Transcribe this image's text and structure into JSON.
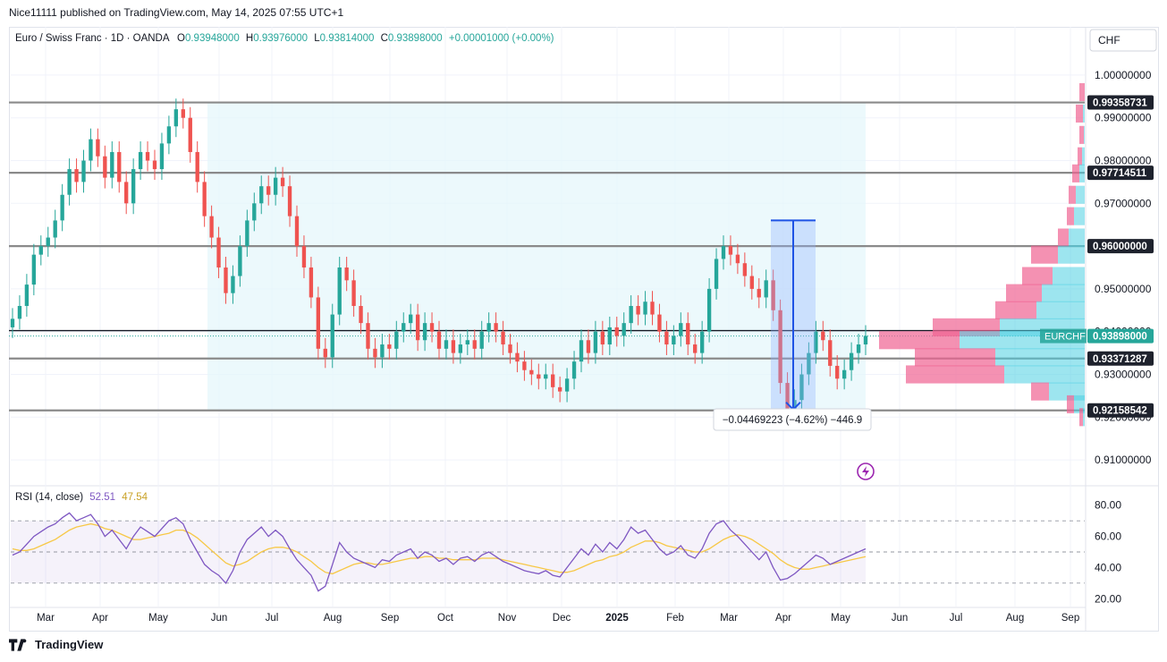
{
  "header": {
    "publisher": "Nice11111 published on TradingView.com, May 14, 2025 07:55 UTC+1"
  },
  "legend": {
    "symbol": "Euro / Swiss Franc · 1D · OANDA",
    "o_label": "O",
    "o": "0.93948000",
    "h_label": "H",
    "h": "0.93976000",
    "l_label": "L",
    "l": "0.93814000",
    "c_label": "C",
    "c": "0.93898000",
    "change": "+0.00001000 (+0.00%)"
  },
  "currency": "CHF",
  "rsi_legend": {
    "label": "RSI (14, close)",
    "rsi": "52.51",
    "ma": "47.54"
  },
  "measure_label": "−0.04469223 (−4.62%) −446.9",
  "footer": {
    "brand": "TradingView"
  },
  "colors": {
    "up": "#26a69a",
    "down": "#ef5350",
    "rsi": "#7e57c2",
    "rsi_ma": "#f7c846",
    "level": "#8a8a8a",
    "zone": "#e6f7fb",
    "measure": "#1e53e5",
    "vp_up": "#4dd0e1",
    "vp_down": "#f06292"
  },
  "icons": {
    "flash": "flash-icon",
    "logo": "tradingview-logo-icon"
  },
  "chart_data": {
    "type": "candlestick",
    "symbol": "EURCHF",
    "timeframe": "1D",
    "ylim": [
      0.905,
      1.005
    ],
    "y_ticks": [
      "0.91000000",
      "0.92000000",
      "0.93000000",
      "0.94000000",
      "0.95000000",
      "0.96000000",
      "0.97000000",
      "0.98000000",
      "0.99000000",
      "1.00000000"
    ],
    "x_ticks": [
      "Mar",
      "Apr",
      "May",
      "Jun",
      "Jul",
      "Aug",
      "Sep",
      "Oct",
      "Nov",
      "Dec",
      "2025",
      "Feb",
      "Mar",
      "Apr",
      "May",
      "Jun",
      "Jul",
      "Aug",
      "Sep"
    ],
    "price_points": [
      0.943,
      0.946,
      0.951,
      0.958,
      0.96,
      0.962,
      0.966,
      0.972,
      0.978,
      0.975,
      0.98,
      0.985,
      0.981,
      0.976,
      0.982,
      0.975,
      0.97,
      0.978,
      0.982,
      0.98,
      0.978,
      0.984,
      0.988,
      0.992,
      0.99,
      0.982,
      0.975,
      0.967,
      0.962,
      0.955,
      0.949,
      0.953,
      0.96,
      0.966,
      0.97,
      0.974,
      0.972,
      0.976,
      0.974,
      0.967,
      0.96,
      0.955,
      0.948,
      0.936,
      0.934,
      0.944,
      0.955,
      0.952,
      0.946,
      0.942,
      0.936,
      0.934,
      0.937,
      0.936,
      0.94,
      0.942,
      0.944,
      0.938,
      0.942,
      0.94,
      0.936,
      0.938,
      0.935,
      0.937,
      0.938,
      0.936,
      0.94,
      0.942,
      0.94,
      0.937,
      0.935,
      0.933,
      0.931,
      0.93,
      0.929,
      0.93,
      0.927,
      0.926,
      0.929,
      0.933,
      0.938,
      0.935,
      0.94,
      0.937,
      0.941,
      0.939,
      0.942,
      0.946,
      0.944,
      0.947,
      0.944,
      0.94,
      0.937,
      0.939,
      0.942,
      0.937,
      0.935,
      0.94,
      0.95,
      0.957,
      0.96,
      0.958,
      0.956,
      0.953,
      0.95,
      0.948,
      0.952,
      0.945,
      0.928,
      0.922,
      0.924,
      0.93,
      0.935,
      0.94,
      0.938,
      0.932,
      0.929,
      0.931,
      0.935,
      0.937,
      0.939
    ],
    "levels": [
      {
        "label": "0.99358731",
        "value": 0.99358731
      },
      {
        "label": "0.97714511",
        "value": 0.97714511
      },
      {
        "label": "0.96000000",
        "value": 0.96
      },
      {
        "label": "0.93371287",
        "value": 0.93371287
      },
      {
        "label": "0.92158542",
        "value": 0.92158542
      }
    ],
    "current": {
      "label": "EURCHF",
      "value_label": "0.93898000",
      "value": 0.93898
    },
    "rsi": {
      "ylim": [
        15,
        85
      ],
      "y_ticks": [
        "20.00",
        "40.00",
        "60.00",
        "80.00"
      ],
      "bands": [
        30,
        50,
        70
      ],
      "values": [
        48,
        50,
        55,
        60,
        63,
        66,
        68,
        72,
        75,
        70,
        72,
        74,
        68,
        60,
        64,
        58,
        52,
        60,
        66,
        63,
        60,
        65,
        70,
        72,
        68,
        58,
        50,
        42,
        38,
        35,
        30,
        38,
        50,
        58,
        62,
        66,
        60,
        64,
        60,
        52,
        45,
        40,
        35,
        25,
        28,
        42,
        56,
        50,
        46,
        44,
        42,
        40,
        45,
        44,
        48,
        50,
        52,
        46,
        50,
        48,
        44,
        46,
        42,
        46,
        47,
        44,
        48,
        50,
        47,
        44,
        42,
        40,
        38,
        37,
        36,
        38,
        35,
        34,
        40,
        46,
        52,
        48,
        55,
        50,
        56,
        52,
        58,
        66,
        62,
        64,
        58,
        52,
        48,
        50,
        54,
        48,
        46,
        52,
        62,
        68,
        70,
        64,
        60,
        55,
        50,
        45,
        50,
        40,
        32,
        33,
        36,
        40,
        44,
        48,
        46,
        42,
        44,
        46,
        48,
        50,
        52
      ],
      "ma": [
        52,
        51,
        51,
        52,
        54,
        56,
        58,
        61,
        64,
        66,
        67,
        68,
        67,
        65,
        64,
        62,
        60,
        58,
        58,
        59,
        60,
        61,
        62,
        64,
        64,
        62,
        59,
        55,
        51,
        47,
        43,
        41,
        42,
        44,
        47,
        50,
        52,
        53,
        53,
        52,
        50,
        47,
        44,
        40,
        37,
        36,
        38,
        40,
        42,
        43,
        43,
        42,
        42,
        43,
        44,
        45,
        46,
        46,
        47,
        47,
        46,
        46,
        45,
        45,
        45,
        45,
        46,
        46,
        46,
        45,
        44,
        43,
        42,
        41,
        40,
        39,
        38,
        37,
        37,
        38,
        40,
        42,
        44,
        45,
        47,
        48,
        50,
        53,
        55,
        57,
        57,
        56,
        54,
        53,
        52,
        51,
        50,
        50,
        52,
        55,
        58,
        60,
        61,
        60,
        58,
        55,
        52,
        49,
        45,
        42,
        40,
        39,
        39,
        40,
        41,
        42,
        43,
        44,
        45,
        46,
        47
      ]
    }
  }
}
